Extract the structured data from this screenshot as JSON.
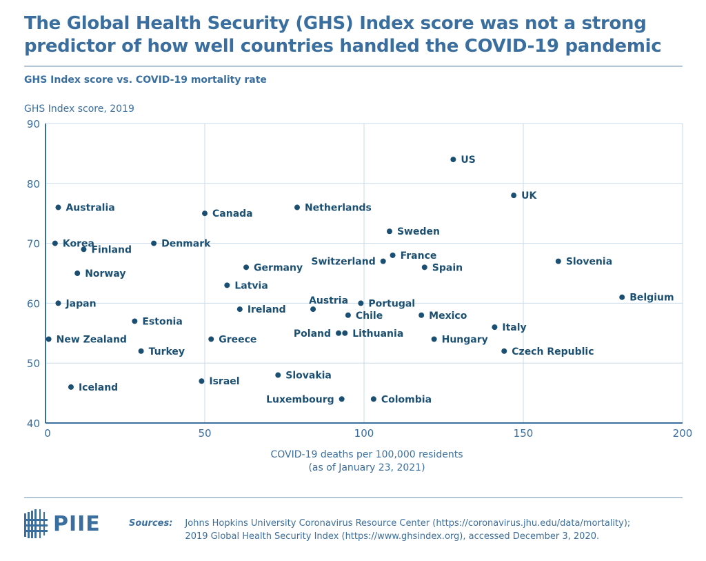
{
  "title": "The Global Health Security (GHS) Index score was not a strong predictor of how well countries handled the COVID-19 pandemic",
  "subtitle": "GHS Index score vs. COVID-19 mortality rate",
  "colors": {
    "accent": "#3a6e9e",
    "point": "#1b4f72",
    "label": "#1b4f72",
    "grid": "#c9d9e8"
  },
  "chart_data": {
    "type": "scatter",
    "ylabel": "GHS Index score, 2019",
    "xlabel": "COVID-19 deaths per 100,000 residents",
    "xlabel_note": "(as of January 23, 2021)",
    "xlim": [
      0,
      200
    ],
    "ylim": [
      40,
      90
    ],
    "xticks": [
      0,
      50,
      100,
      150,
      200
    ],
    "yticks": [
      40,
      50,
      60,
      70,
      80,
      90
    ],
    "grid": true,
    "points": [
      {
        "label": "US",
        "x": 128,
        "y": 84
      },
      {
        "label": "UK",
        "x": 147,
        "y": 78
      },
      {
        "label": "Australia",
        "x": 4,
        "y": 76
      },
      {
        "label": "Canada",
        "x": 50,
        "y": 75
      },
      {
        "label": "Netherlands",
        "x": 79,
        "y": 76
      },
      {
        "label": "Sweden",
        "x": 108,
        "y": 72
      },
      {
        "label": "Korea",
        "x": 3,
        "y": 70
      },
      {
        "label": "Finland",
        "x": 12,
        "y": 69
      },
      {
        "label": "Denmark",
        "x": 34,
        "y": 70
      },
      {
        "label": "France",
        "x": 109,
        "y": 68
      },
      {
        "label": "Switzerland",
        "x": 106,
        "y": 67
      },
      {
        "label": "Slovenia",
        "x": 161,
        "y": 67
      },
      {
        "label": "Spain",
        "x": 119,
        "y": 66
      },
      {
        "label": "Germany",
        "x": 63,
        "y": 66
      },
      {
        "label": "Norway",
        "x": 10,
        "y": 65
      },
      {
        "label": "Latvia",
        "x": 57,
        "y": 63
      },
      {
        "label": "Belgium",
        "x": 181,
        "y": 61
      },
      {
        "label": "Japan",
        "x": 4,
        "y": 60
      },
      {
        "label": "Austria",
        "x": 84,
        "y": 59
      },
      {
        "label": "Portugal",
        "x": 99,
        "y": 60
      },
      {
        "label": "Ireland",
        "x": 61,
        "y": 59
      },
      {
        "label": "Chile",
        "x": 95,
        "y": 58
      },
      {
        "label": "Mexico",
        "x": 118,
        "y": 58
      },
      {
        "label": "Estonia",
        "x": 28,
        "y": 57
      },
      {
        "label": "Italy",
        "x": 141,
        "y": 56
      },
      {
        "label": "Poland",
        "x": 92,
        "y": 55
      },
      {
        "label": "Lithuania",
        "x": 94,
        "y": 55
      },
      {
        "label": "New Zealand",
        "x": 1,
        "y": 54
      },
      {
        "label": "Greece",
        "x": 52,
        "y": 54
      },
      {
        "label": "Hungary",
        "x": 122,
        "y": 54
      },
      {
        "label": "Turkey",
        "x": 30,
        "y": 52
      },
      {
        "label": "Czech Republic",
        "x": 144,
        "y": 52
      },
      {
        "label": "Slovakia",
        "x": 73,
        "y": 48
      },
      {
        "label": "Israel",
        "x": 49,
        "y": 47
      },
      {
        "label": "Iceland",
        "x": 8,
        "y": 46
      },
      {
        "label": "Luxembourg",
        "x": 93,
        "y": 44
      },
      {
        "label": "Colombia",
        "x": 103,
        "y": 44
      }
    ]
  },
  "footer": {
    "logo": "PIIE",
    "sources_label": "Sources:",
    "sources_lines": [
      "Johns Hopkins University Coronavirus Resource Center (https://coronavirus.jhu.edu/data/mortality);",
      "2019 Global Health Security Index (https://www.ghsindex.org), accessed December 3, 2020."
    ]
  }
}
